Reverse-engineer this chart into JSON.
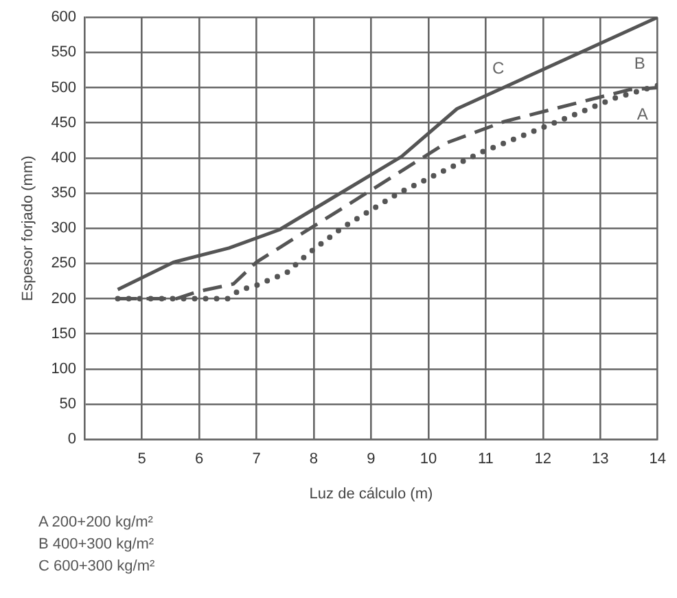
{
  "chart_data": {
    "type": "line",
    "xlabel": "Luz de cálculo (m)",
    "ylabel": "Espesor forjado (mm)",
    "xlim": [
      4,
      14
    ],
    "xticks": [
      5,
      6,
      7,
      8,
      9,
      10,
      11,
      12,
      13,
      14
    ],
    "ylim": [
      0,
      600
    ],
    "yticks": [
      0,
      50,
      100,
      150,
      200,
      250,
      300,
      350,
      400,
      450,
      500,
      550,
      600
    ],
    "grid": true,
    "marker": "none",
    "series": [
      {
        "name": "A",
        "color": "#555555",
        "line_style": "dotted",
        "x": [
          4.58,
          6.5,
          6.7,
          7.0,
          7.53,
          7.9,
          8.5,
          9.48,
          10.92,
          12.2,
          13.25,
          14
        ],
        "values": [
          200,
          200,
          212,
          219,
          237,
          264,
          301,
          350,
          408,
          450,
          485,
          503
        ]
      },
      {
        "name": "B",
        "color": "#555555",
        "line_style": "dashed",
        "x": [
          4.58,
          5.6,
          5.97,
          6.6,
          7.0,
          8.45,
          10.3,
          11.33,
          13.5,
          14
        ],
        "values": [
          200,
          200,
          210,
          221,
          252,
          326,
          421,
          452,
          497,
          500
        ]
      },
      {
        "name": "C",
        "color": "#555555",
        "line_style": "solid",
        "x": [
          4.58,
          5.56,
          6.52,
          7.4,
          9.53,
          10.5,
          14
        ],
        "values": [
          213,
          252,
          272,
          298,
          402,
          470,
          600
        ]
      }
    ],
    "annotations": [
      "A 200+200 kg/m²",
      "B 400+300 kg/m²",
      "C 600+300 kg/m²"
    ]
  }
}
